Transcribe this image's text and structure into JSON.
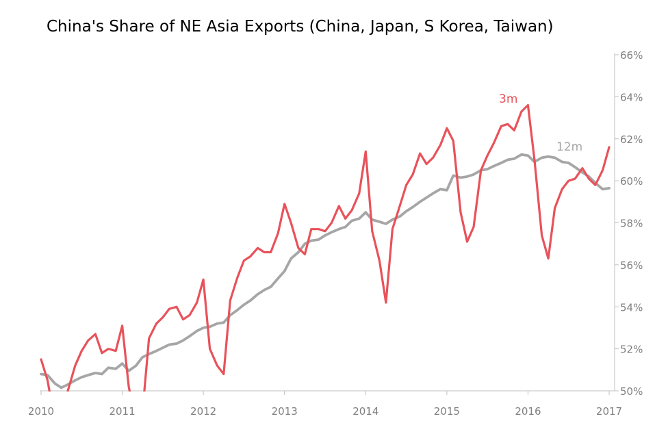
{
  "chart_data": {
    "type": "line",
    "title": "China's Share of NE Asia Exports (China, Japan, S Korea, Taiwan)",
    "xlabel": "",
    "ylabel": "",
    "x_ticks": [
      "2010",
      "2011",
      "2012",
      "2013",
      "2014",
      "2015",
      "2016",
      "2017"
    ],
    "y_ticks": [
      "50%",
      "52%",
      "54%",
      "56%",
      "58%",
      "60%",
      "62%",
      "64%",
      "66%"
    ],
    "xlim": [
      2010.0,
      2017.0
    ],
    "ylim": [
      50,
      66
    ],
    "y_axis_position": "right",
    "grid": false,
    "series": [
      {
        "name": "3m",
        "color": "#e8525a",
        "x": [
          2010.0,
          2010.08,
          2010.17,
          2010.25,
          2010.33,
          2010.42,
          2010.5,
          2010.58,
          2010.67,
          2010.75,
          2010.83,
          2010.92,
          2011.0,
          2011.08,
          2011.17,
          2011.25,
          2011.33,
          2011.42,
          2011.5,
          2011.58,
          2011.67,
          2011.75,
          2011.83,
          2011.92,
          2012.0,
          2012.08,
          2012.17,
          2012.25,
          2012.33,
          2012.42,
          2012.5,
          2012.58,
          2012.67,
          2012.75,
          2012.83,
          2012.92,
          2013.0,
          2013.08,
          2013.17,
          2013.25,
          2013.33,
          2013.42,
          2013.5,
          2013.58,
          2013.67,
          2013.75,
          2013.83,
          2013.92,
          2014.0,
          2014.08,
          2014.17,
          2014.25,
          2014.33,
          2014.42,
          2014.5,
          2014.58,
          2014.67,
          2014.75,
          2014.83,
          2014.92,
          2015.0,
          2015.08,
          2015.17,
          2015.25,
          2015.33,
          2015.42,
          2015.5,
          2015.58,
          2015.67,
          2015.75,
          2015.83,
          2015.92,
          2016.0,
          2016.08,
          2016.17,
          2016.25,
          2016.33,
          2016.42,
          2016.5,
          2016.58,
          2016.67,
          2016.75,
          2016.83,
          2016.92,
          2017.0
        ],
        "values": [
          51.5,
          50.5,
          48.5,
          48.0,
          50.0,
          51.2,
          51.9,
          52.4,
          52.7,
          51.8,
          52.0,
          51.9,
          53.1,
          50.2,
          48.5,
          49.0,
          52.5,
          53.2,
          53.5,
          53.9,
          54.0,
          53.4,
          53.6,
          54.2,
          55.3,
          52.0,
          51.2,
          50.8,
          54.3,
          55.4,
          56.2,
          56.4,
          56.8,
          56.6,
          56.6,
          57.5,
          58.9,
          58.0,
          56.8,
          56.5,
          57.7,
          57.7,
          57.6,
          58.0,
          58.8,
          58.2,
          58.6,
          59.4,
          61.4,
          57.6,
          56.2,
          54.2,
          57.7,
          58.8,
          59.8,
          60.3,
          61.3,
          60.8,
          61.1,
          61.7,
          62.5,
          61.9,
          58.5,
          57.1,
          57.8,
          60.5,
          61.2,
          61.8,
          62.6,
          62.7,
          62.4,
          63.3,
          63.6,
          61.0,
          57.4,
          56.3,
          58.7,
          59.6,
          60.0,
          60.1,
          60.6,
          60.1,
          59.8,
          60.5,
          61.6
        ]
      },
      {
        "name": "12m",
        "color": "#a6a6a6",
        "x": [
          2010.0,
          2010.08,
          2010.17,
          2010.25,
          2010.33,
          2010.42,
          2010.5,
          2010.58,
          2010.67,
          2010.75,
          2010.83,
          2010.92,
          2011.0,
          2011.08,
          2011.17,
          2011.25,
          2011.33,
          2011.42,
          2011.5,
          2011.58,
          2011.67,
          2011.75,
          2011.83,
          2011.92,
          2012.0,
          2012.08,
          2012.17,
          2012.25,
          2012.33,
          2012.42,
          2012.5,
          2012.58,
          2012.67,
          2012.75,
          2012.83,
          2012.92,
          2013.0,
          2013.08,
          2013.17,
          2013.25,
          2013.33,
          2013.42,
          2013.5,
          2013.58,
          2013.67,
          2013.75,
          2013.83,
          2013.92,
          2014.0,
          2014.08,
          2014.17,
          2014.25,
          2014.33,
          2014.42,
          2014.5,
          2014.58,
          2014.67,
          2014.75,
          2014.83,
          2014.92,
          2015.0,
          2015.08,
          2015.17,
          2015.25,
          2015.33,
          2015.42,
          2015.5,
          2015.58,
          2015.67,
          2015.75,
          2015.83,
          2015.92,
          2016.0,
          2016.08,
          2016.17,
          2016.25,
          2016.33,
          2016.42,
          2016.5,
          2016.58,
          2016.67,
          2016.75,
          2016.83,
          2016.92,
          2017.0
        ],
        "values": [
          50.8,
          50.75,
          50.35,
          50.15,
          50.3,
          50.5,
          50.65,
          50.75,
          50.85,
          50.8,
          51.1,
          51.05,
          51.3,
          50.95,
          51.2,
          51.6,
          51.75,
          51.9,
          52.05,
          52.2,
          52.25,
          52.4,
          52.6,
          52.85,
          53.0,
          53.05,
          53.2,
          53.25,
          53.6,
          53.85,
          54.1,
          54.3,
          54.6,
          54.8,
          54.95,
          55.35,
          55.7,
          56.3,
          56.6,
          57.0,
          57.15,
          57.2,
          57.4,
          57.55,
          57.7,
          57.8,
          58.1,
          58.2,
          58.5,
          58.15,
          58.05,
          57.95,
          58.15,
          58.3,
          58.55,
          58.75,
          59.0,
          59.2,
          59.4,
          59.6,
          59.55,
          60.25,
          60.15,
          60.2,
          60.3,
          60.5,
          60.55,
          60.7,
          60.85,
          61.0,
          61.05,
          61.25,
          61.2,
          60.9,
          61.1,
          61.15,
          61.1,
          60.9,
          60.85,
          60.65,
          60.4,
          60.2,
          59.9,
          59.6,
          59.65
        ]
      }
    ],
    "annotations": [
      {
        "text": "3m",
        "series": "3m"
      },
      {
        "text": "12m",
        "series": "12m"
      }
    ]
  }
}
